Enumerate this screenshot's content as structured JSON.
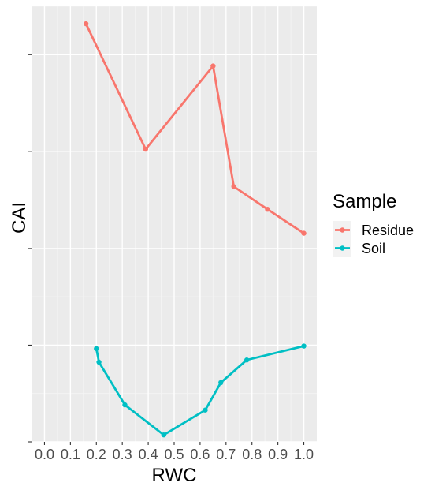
{
  "chart_data": {
    "type": "line",
    "xlabel": "RWC",
    "ylabel": "CAI",
    "xlim": [
      -0.05,
      1.05
    ],
    "ylim": [
      0,
      1
    ],
    "x_ticks": [
      0.0,
      0.1,
      0.2,
      0.3,
      0.4,
      0.5,
      0.6,
      0.7,
      0.8,
      0.9,
      1.0
    ],
    "x_tick_labels": [
      "0.0",
      "0.1",
      "0.2",
      "0.3",
      "0.4",
      "0.5",
      "0.6",
      "0.7",
      "0.8",
      "0.9",
      "1.0"
    ],
    "y_ticks": [
      0.0,
      0.222,
      0.444,
      0.667,
      0.889
    ],
    "y_tick_labels": [
      "",
      "",
      "",
      "",
      ""
    ],
    "grid": true,
    "legend": {
      "title": "Sample",
      "position": "right"
    },
    "series": [
      {
        "name": "Residue",
        "color": "#F8766D",
        "points": [
          {
            "x": 0.16,
            "y": 0.96
          },
          {
            "x": 0.39,
            "y": 0.672
          },
          {
            "x": 0.65,
            "y": 0.863
          },
          {
            "x": 0.73,
            "y": 0.586
          },
          {
            "x": 0.86,
            "y": 0.534
          },
          {
            "x": 1.0,
            "y": 0.479
          }
        ]
      },
      {
        "name": "Soil",
        "color": "#00BFC4",
        "points": [
          {
            "x": 0.2,
            "y": 0.214
          },
          {
            "x": 0.21,
            "y": 0.183
          },
          {
            "x": 0.31,
            "y": 0.085
          },
          {
            "x": 0.46,
            "y": 0.016
          },
          {
            "x": 0.62,
            "y": 0.073
          },
          {
            "x": 0.68,
            "y": 0.136
          },
          {
            "x": 0.78,
            "y": 0.188
          },
          {
            "x": 1.0,
            "y": 0.22
          }
        ]
      }
    ]
  }
}
